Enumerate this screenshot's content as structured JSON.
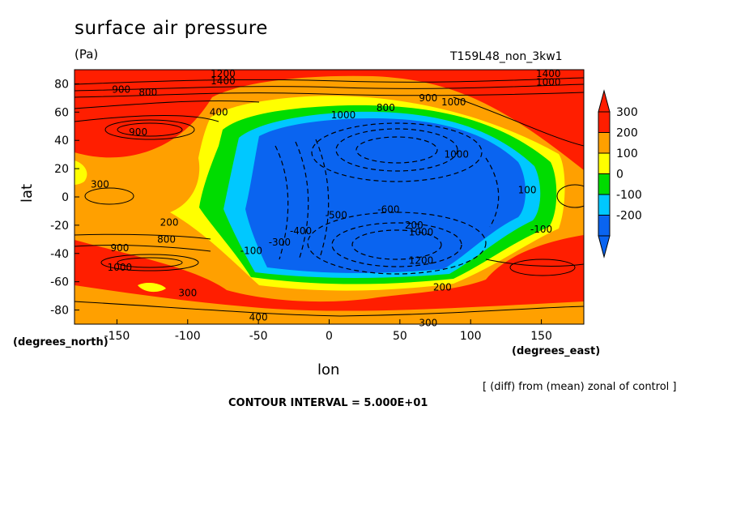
{
  "chart_data": {
    "type": "heatmap",
    "title": "surface air pressure",
    "units": "(Pa)",
    "experiment": "T159L48_non_3kw1",
    "xlabel": "lon",
    "ylabel": "lat",
    "x_unit_label": "(degrees_east)",
    "y_unit_label": "(degrees_north)",
    "xlim": [
      -180,
      180
    ],
    "ylim": [
      -90,
      90
    ],
    "x_ticks": [
      -150,
      -100,
      -50,
      0,
      50,
      100,
      150
    ],
    "y_ticks": [
      -80,
      -60,
      -40,
      -20,
      0,
      20,
      40,
      60,
      80
    ],
    "x_tick_labels": [
      "-150",
      "-100",
      "-50",
      "0",
      "50",
      "100",
      "150"
    ],
    "y_tick_labels": [
      "-80",
      "-60",
      "-40",
      "-20",
      "0",
      "20",
      "40",
      "60",
      "80"
    ],
    "colorbar": {
      "levels": [
        -200,
        -100,
        0,
        100,
        200,
        300
      ],
      "labels": [
        "-200",
        "-100",
        "0",
        "100",
        "200",
        "300"
      ],
      "colors": [
        "#0a64f0",
        "#00c8ff",
        "#00dc00",
        "#ffff00",
        "#ffa000",
        "#ff1e00"
      ],
      "extend": "both"
    },
    "contour_labels": [
      {
        "text": "900",
        "lon": -147,
        "lat": 76
      },
      {
        "text": "800",
        "lon": -128,
        "lat": 74
      },
      {
        "text": "1200",
        "lon": -75,
        "lat": 87
      },
      {
        "text": "1400",
        "lon": -75,
        "lat": 82
      },
      {
        "text": "1400",
        "lon": 155,
        "lat": 87
      },
      {
        "text": "1000",
        "lon": 155,
        "lat": 81
      },
      {
        "text": "400",
        "lon": -78,
        "lat": 60
      },
      {
        "text": "900",
        "lon": -135,
        "lat": 46
      },
      {
        "text": "1000",
        "lon": 10,
        "lat": 58
      },
      {
        "text": "800",
        "lon": 40,
        "lat": 63
      },
      {
        "text": "900",
        "lon": 70,
        "lat": 70
      },
      {
        "text": "1000",
        "lon": 88,
        "lat": 67
      },
      {
        "text": "1000",
        "lon": 90,
        "lat": 30
      },
      {
        "text": "300",
        "lon": -162,
        "lat": 9
      },
      {
        "text": "100",
        "lon": 140,
        "lat": 5
      },
      {
        "text": "-600",
        "lon": 42,
        "lat": -9
      },
      {
        "text": "200",
        "lon": -113,
        "lat": -18
      },
      {
        "text": "-100",
        "lon": 150,
        "lat": -23
      },
      {
        "text": "-500",
        "lon": 5,
        "lat": -13
      },
      {
        "text": "-400",
        "lon": -20,
        "lat": -24
      },
      {
        "text": "-300",
        "lon": -35,
        "lat": -32
      },
      {
        "text": "-100",
        "lon": -55,
        "lat": -38
      },
      {
        "text": "200",
        "lon": 60,
        "lat": -20
      },
      {
        "text": "1000",
        "lon": 65,
        "lat": -25
      },
      {
        "text": "1200",
        "lon": 65,
        "lat": -45
      },
      {
        "text": "900",
        "lon": -148,
        "lat": -36
      },
      {
        "text": "800",
        "lon": -115,
        "lat": -30
      },
      {
        "text": "1000",
        "lon": -148,
        "lat": -50
      },
      {
        "text": "300",
        "lon": -100,
        "lat": -68
      },
      {
        "text": "200",
        "lon": 80,
        "lat": -64
      },
      {
        "text": "400",
        "lon": -50,
        "lat": -85
      },
      {
        "text": "300",
        "lon": 70,
        "lat": -89
      }
    ]
  },
  "annotations": {
    "note": "[ (diff) from (mean) zonal of control ]",
    "contour_interval": "CONTOUR INTERVAL = 5.000E+01"
  }
}
